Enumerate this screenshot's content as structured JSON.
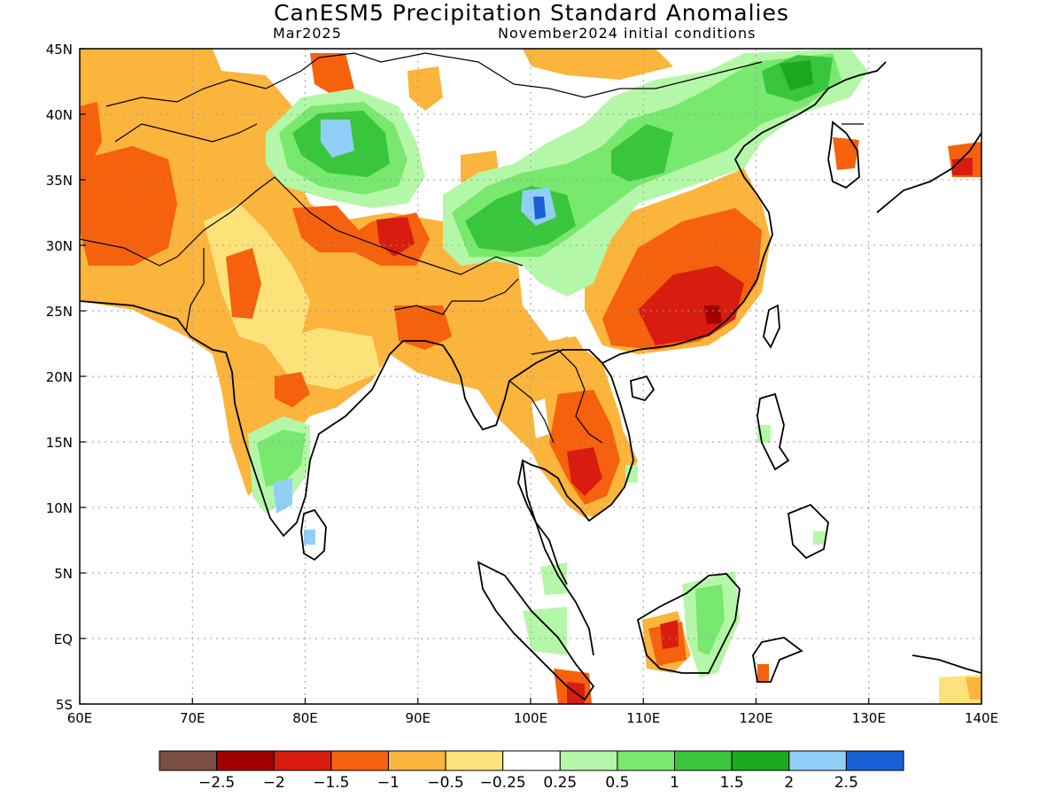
{
  "title": "CanESM5 Precipitation Standard Anomalies",
  "subtitle_left": "Mar2025",
  "subtitle_right": "November2024 initial conditions",
  "map": {
    "x_ticks": [
      "60E",
      "70E",
      "80E",
      "90E",
      "100E",
      "110E",
      "120E",
      "130E",
      "140E"
    ],
    "y_ticks": [
      "45N",
      "40N",
      "35N",
      "30N",
      "25N",
      "20N",
      "15N",
      "10N",
      "5N",
      "EQ",
      "5S"
    ]
  },
  "colorbar": {
    "colors": [
      "#7b4f44",
      "#a30000",
      "#d81c0f",
      "#f5610c",
      "#fbb43c",
      "#fde27a",
      "#ffffff",
      "#b5f7a8",
      "#78e86e",
      "#3ac63c",
      "#1ba920",
      "#92cff8",
      "#1760d6"
    ],
    "labels": [
      "−2.5",
      "−2",
      "−1.5",
      "−1",
      "−0.5",
      "−0.25",
      "0.25",
      "0.5",
      "1",
      "1.5",
      "2",
      "2.5"
    ]
  },
  "colors": {
    "coastline": "#000000",
    "grid": "#9a9a9a"
  }
}
